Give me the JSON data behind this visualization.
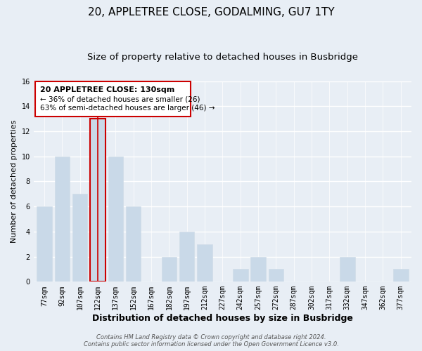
{
  "title": "20, APPLETREE CLOSE, GODALMING, GU7 1TY",
  "subtitle": "Size of property relative to detached houses in Busbridge",
  "xlabel": "Distribution of detached houses by size in Busbridge",
  "ylabel": "Number of detached properties",
  "bar_labels": [
    "77sqm",
    "92sqm",
    "107sqm",
    "122sqm",
    "137sqm",
    "152sqm",
    "167sqm",
    "182sqm",
    "197sqm",
    "212sqm",
    "227sqm",
    "242sqm",
    "257sqm",
    "272sqm",
    "287sqm",
    "302sqm",
    "317sqm",
    "332sqm",
    "347sqm",
    "362sqm",
    "377sqm"
  ],
  "bar_values": [
    6,
    10,
    7,
    13,
    10,
    6,
    0,
    2,
    4,
    3,
    0,
    1,
    2,
    1,
    0,
    0,
    0,
    2,
    0,
    0,
    1
  ],
  "bar_color": "#c9d9e8",
  "bar_edge_color": "#d0dce8",
  "highlight_bar_index": 3,
  "highlight_bar_edge_color": "#cc0000",
  "highlight_line_color": "#cc0000",
  "annotation_title": "20 APPLETREE CLOSE: 130sqm",
  "annotation_line1": "← 36% of detached houses are smaller (26)",
  "annotation_line2": "63% of semi-detached houses are larger (46) →",
  "annotation_box_edge": "#cc0000",
  "ylim": [
    0,
    16
  ],
  "yticks": [
    0,
    2,
    4,
    6,
    8,
    10,
    12,
    14,
    16
  ],
  "bg_color": "#e8eef5",
  "plot_bg_color": "#e8eef5",
  "footer_line1": "Contains HM Land Registry data © Crown copyright and database right 2024.",
  "footer_line2": "Contains public sector information licensed under the Open Government Licence v3.0.",
  "title_fontsize": 11,
  "subtitle_fontsize": 9.5,
  "xlabel_fontsize": 9,
  "ylabel_fontsize": 8,
  "tick_fontsize": 7,
  "footer_fontsize": 6,
  "annotation_title_fontsize": 8,
  "annotation_text_fontsize": 7.5
}
